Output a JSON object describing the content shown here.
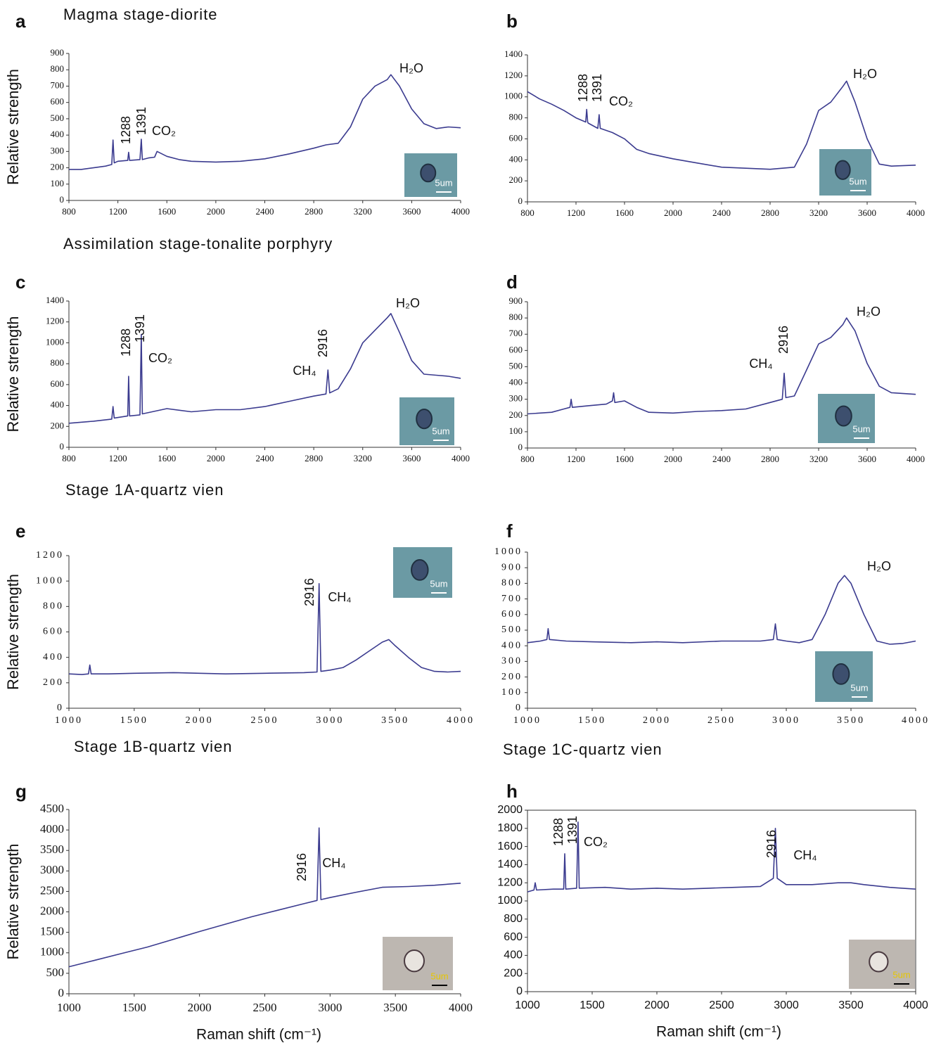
{
  "stage_titles": [
    "Magma stage-diorite",
    "Assimilation stage-tonalite porphyry",
    "Stage 1A-quartz vien",
    "Stage 1B-quartz vien",
    "Stage 1C-quartz vien"
  ],
  "chart_data": [
    {
      "type": "line",
      "panel_label": "a",
      "ylabel": "Relative strength",
      "color": "#3b3b8f",
      "inset_label": "5um",
      "annotations": [
        "1288",
        "1391",
        "CO₂",
        "H₂O"
      ],
      "xlim": [
        800,
        4000
      ],
      "xticks": [
        800,
        1200,
        1600,
        2000,
        2400,
        2800,
        3200,
        3600,
        4000
      ],
      "ylim": [
        0,
        900
      ],
      "yticks": [
        0,
        100,
        200,
        300,
        400,
        500,
        600,
        700,
        800,
        900
      ],
      "x": [
        800,
        900,
        1000,
        1100,
        1150,
        1160,
        1170,
        1200,
        1280,
        1288,
        1296,
        1380,
        1391,
        1400,
        1450,
        1500,
        1520,
        1600,
        1700,
        1800,
        2000,
        2200,
        2400,
        2600,
        2800,
        2900,
        3000,
        3050,
        3100,
        3200,
        3300,
        3400,
        3430,
        3500,
        3600,
        3700,
        3800,
        3900,
        4000
      ],
      "values": [
        190,
        190,
        200,
        210,
        220,
        370,
        230,
        240,
        245,
        295,
        245,
        250,
        375,
        250,
        260,
        265,
        300,
        270,
        250,
        240,
        235,
        240,
        255,
        285,
        320,
        340,
        350,
        400,
        450,
        620,
        700,
        740,
        770,
        700,
        560,
        470,
        440,
        450,
        445
      ]
    },
    {
      "type": "line",
      "panel_label": "b",
      "color": "#3b3b8f",
      "inset_label": "5um",
      "annotations": [
        "1288",
        "1391",
        "CO₂",
        "H₂O"
      ],
      "xlim": [
        800,
        4000
      ],
      "xticks": [
        800,
        1200,
        1600,
        2000,
        2400,
        2800,
        3200,
        3600,
        4000
      ],
      "ylim": [
        0,
        1400
      ],
      "yticks": [
        0,
        200,
        400,
        600,
        800,
        1000,
        1200,
        1400
      ],
      "x": [
        800,
        900,
        1000,
        1100,
        1200,
        1280,
        1288,
        1296,
        1300,
        1380,
        1391,
        1400,
        1500,
        1600,
        1700,
        1800,
        2000,
        2200,
        2400,
        2600,
        2800,
        2900,
        3000,
        3100,
        3200,
        3300,
        3400,
        3430,
        3500,
        3600,
        3700,
        3800,
        4000
      ],
      "values": [
        1050,
        980,
        930,
        870,
        800,
        760,
        880,
        760,
        750,
        700,
        830,
        700,
        660,
        600,
        500,
        460,
        410,
        370,
        330,
        320,
        310,
        320,
        330,
        550,
        870,
        950,
        1100,
        1150,
        950,
        600,
        360,
        340,
        350
      ]
    },
    {
      "type": "line",
      "panel_label": "c",
      "ylabel": "Relative strength",
      "color": "#3b3b8f",
      "inset_label": "5um",
      "annotations": [
        "1288",
        "1391",
        "CO₂",
        "CH₄",
        "2916",
        "H₂O"
      ],
      "xlim": [
        800,
        4000
      ],
      "xticks": [
        800,
        1200,
        1600,
        2000,
        2400,
        2800,
        3200,
        3600,
        4000
      ],
      "ylim": [
        0,
        1400
      ],
      "yticks": [
        0,
        200,
        400,
        600,
        800,
        1000,
        1200,
        1400
      ],
      "x": [
        800,
        1000,
        1150,
        1160,
        1170,
        1280,
        1288,
        1296,
        1380,
        1391,
        1400,
        1600,
        1800,
        2000,
        2200,
        2400,
        2600,
        2800,
        2900,
        2916,
        2930,
        3000,
        3100,
        3200,
        3300,
        3400,
        3430,
        3500,
        3600,
        3700,
        3800,
        3900,
        4000
      ],
      "values": [
        230,
        250,
        270,
        390,
        280,
        300,
        680,
        300,
        310,
        1080,
        320,
        370,
        340,
        360,
        360,
        390,
        440,
        490,
        510,
        740,
        520,
        560,
        750,
        1000,
        1120,
        1240,
        1280,
        1100,
        830,
        700,
        690,
        680,
        660
      ]
    },
    {
      "type": "line",
      "panel_label": "d",
      "color": "#3b3b8f",
      "inset_label": "5um",
      "annotations": [
        "CH₄",
        "2916",
        "H₂O"
      ],
      "xlim": [
        800,
        4000
      ],
      "xticks": [
        800,
        1200,
        1600,
        2000,
        2400,
        2800,
        3200,
        3600,
        4000
      ],
      "ylim": [
        0,
        900
      ],
      "yticks": [
        0,
        100,
        200,
        300,
        400,
        500,
        600,
        700,
        800,
        900
      ],
      "x": [
        800,
        1000,
        1100,
        1150,
        1160,
        1170,
        1300,
        1450,
        1500,
        1510,
        1520,
        1600,
        1700,
        1800,
        2000,
        2200,
        2400,
        2600,
        2800,
        2900,
        2916,
        2930,
        3000,
        3100,
        3200,
        3300,
        3400,
        3430,
        3500,
        3600,
        3700,
        3800,
        4000
      ],
      "values": [
        210,
        220,
        240,
        250,
        300,
        250,
        260,
        270,
        290,
        340,
        280,
        290,
        250,
        220,
        215,
        225,
        230,
        240,
        280,
        300,
        460,
        310,
        320,
        480,
        640,
        680,
        760,
        800,
        720,
        520,
        380,
        340,
        330
      ]
    },
    {
      "type": "line",
      "panel_label": "e",
      "ylabel": "Relative strength",
      "color": "#3b3b8f",
      "inset_label": "5um",
      "annotations": [
        "2916",
        "CH₄"
      ],
      "xlim": [
        1000,
        4000
      ],
      "xticks": [
        1000,
        1500,
        2000,
        2500,
        3000,
        3500,
        4000
      ],
      "ylim": [
        0,
        1200
      ],
      "yticks": [
        0,
        200,
        400,
        600,
        800,
        1000,
        1200
      ],
      "x": [
        1000,
        1100,
        1150,
        1160,
        1170,
        1300,
        1500,
        1800,
        2000,
        2200,
        2500,
        2800,
        2900,
        2916,
        2930,
        3000,
        3100,
        3200,
        3300,
        3400,
        3450,
        3500,
        3600,
        3700,
        3800,
        3900,
        4000
      ],
      "values": [
        270,
        265,
        270,
        340,
        270,
        270,
        275,
        280,
        275,
        270,
        275,
        280,
        285,
        980,
        290,
        300,
        320,
        380,
        450,
        520,
        540,
        490,
        400,
        320,
        290,
        285,
        290
      ]
    },
    {
      "type": "line",
      "panel_label": "f",
      "color": "#3b3b8f",
      "inset_label": "5um",
      "annotations": [
        "H₂O"
      ],
      "xlim": [
        1000,
        4000
      ],
      "xticks": [
        1000,
        1500,
        2000,
        2500,
        3000,
        3500,
        4000
      ],
      "ylim": [
        0,
        1000
      ],
      "yticks": [
        0,
        100,
        200,
        300,
        400,
        500,
        600,
        700,
        800,
        900,
        1000
      ],
      "x": [
        1000,
        1100,
        1150,
        1160,
        1170,
        1300,
        1500,
        1800,
        2000,
        2200,
        2500,
        2800,
        2900,
        2916,
        2930,
        3000,
        3100,
        3200,
        3300,
        3400,
        3450,
        3500,
        3600,
        3700,
        3800,
        3900,
        4000
      ],
      "values": [
        420,
        430,
        440,
        510,
        440,
        430,
        425,
        420,
        425,
        420,
        430,
        430,
        440,
        540,
        440,
        430,
        420,
        440,
        600,
        800,
        850,
        800,
        600,
        430,
        410,
        415,
        430
      ]
    },
    {
      "type": "line",
      "panel_label": "g",
      "ylabel": "Relative strength",
      "xlabel": "Raman shift (cm⁻¹)",
      "color": "#3b3b8f",
      "inset_label": "5um",
      "annotations": [
        "2916",
        "CH₄"
      ],
      "xlim": [
        1000,
        4000
      ],
      "xticks": [
        1000,
        1500,
        2000,
        2500,
        3000,
        3500,
        4000
      ],
      "ylim": [
        0,
        4500
      ],
      "yticks": [
        0,
        500,
        1000,
        1500,
        2000,
        2500,
        3000,
        3500,
        4000,
        4500
      ],
      "x": [
        1000,
        1200,
        1400,
        1600,
        1800,
        2000,
        2200,
        2400,
        2600,
        2800,
        2900,
        2916,
        2930,
        3000,
        3200,
        3400,
        3600,
        3800,
        4000
      ],
      "values": [
        660,
        820,
        980,
        1140,
        1330,
        1520,
        1700,
        1880,
        2040,
        2200,
        2280,
        4050,
        2300,
        2350,
        2480,
        2600,
        2620,
        2650,
        2700
      ]
    },
    {
      "type": "line",
      "panel_label": "h",
      "xlabel": "Raman shift (cm⁻¹)",
      "color": "#3b3b8f",
      "inset_label": "5um",
      "frame": true,
      "annotations": [
        "1288",
        "1391",
        "CO₂",
        "2916",
        "CH₄"
      ],
      "xlim": [
        1000,
        4000
      ],
      "xticks": [
        1000,
        1500,
        2000,
        2500,
        3000,
        3500,
        4000
      ],
      "ylim": [
        0,
        2000
      ],
      "yticks": [
        0,
        200,
        400,
        600,
        800,
        1000,
        1200,
        1400,
        1600,
        1800,
        2000
      ],
      "x": [
        1000,
        1050,
        1060,
        1070,
        1200,
        1280,
        1288,
        1296,
        1380,
        1391,
        1400,
        1600,
        1800,
        2000,
        2200,
        2400,
        2600,
        2800,
        2900,
        2916,
        2930,
        3000,
        3200,
        3400,
        3500,
        3600,
        3800,
        4000
      ],
      "values": [
        1100,
        1120,
        1200,
        1120,
        1130,
        1130,
        1520,
        1130,
        1140,
        1870,
        1140,
        1150,
        1130,
        1140,
        1130,
        1140,
        1150,
        1160,
        1250,
        1800,
        1250,
        1180,
        1180,
        1200,
        1200,
        1180,
        1150,
        1130
      ]
    }
  ]
}
